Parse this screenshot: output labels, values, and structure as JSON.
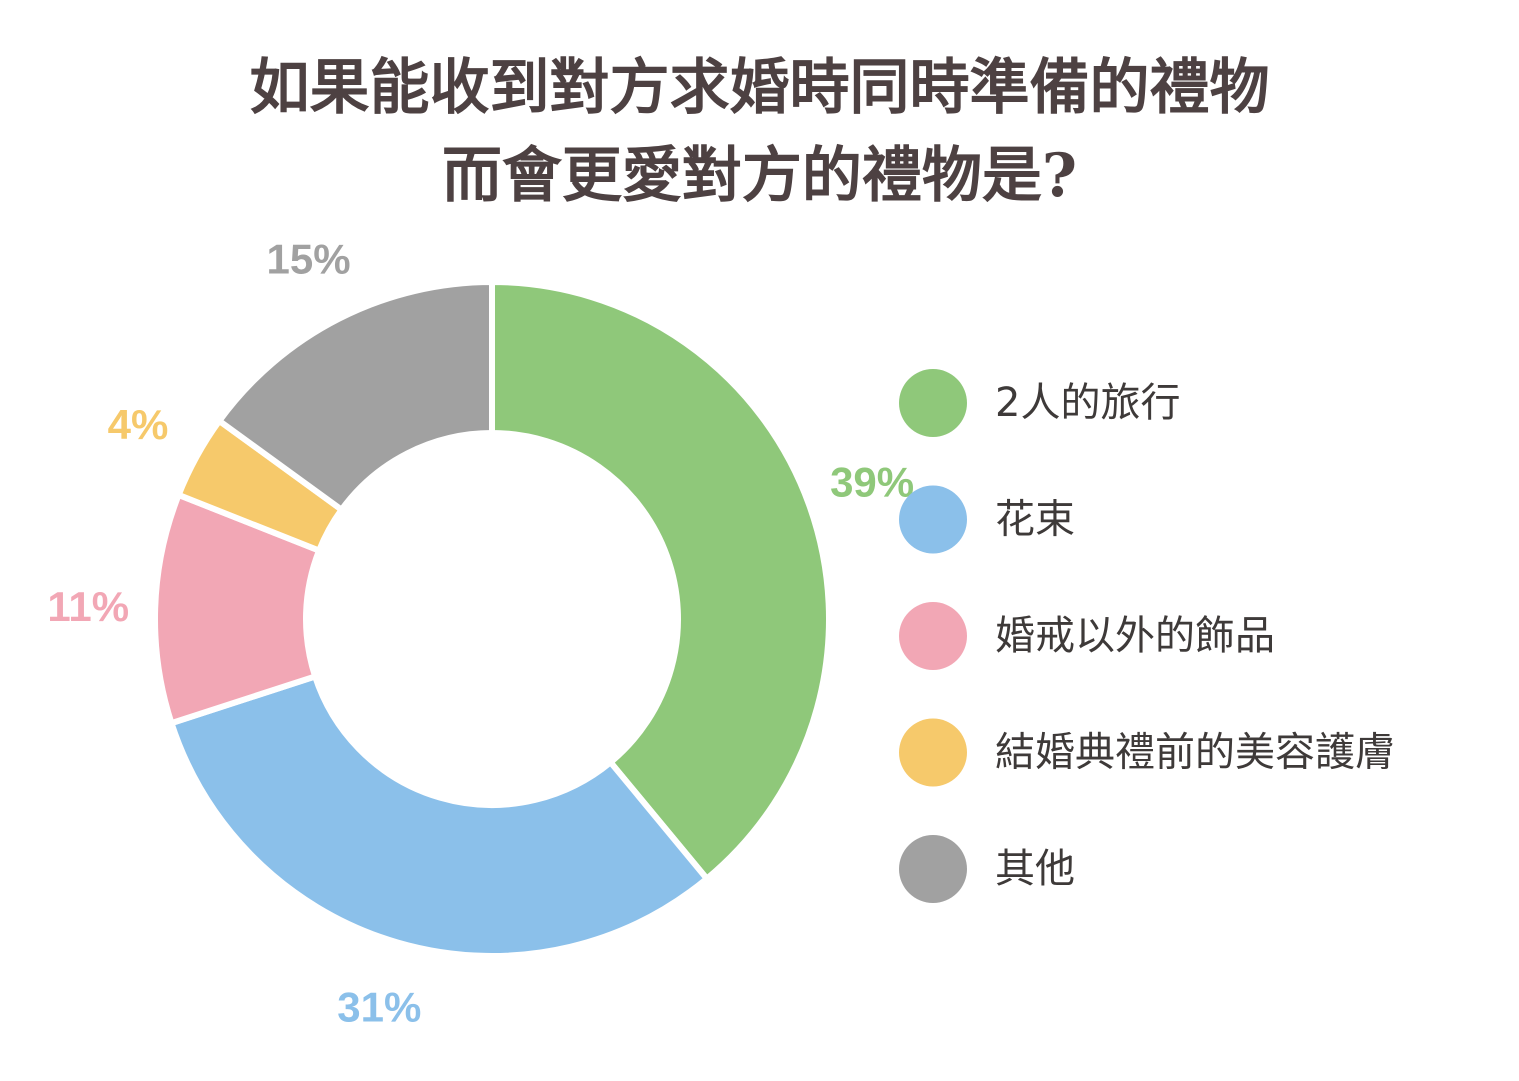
{
  "title_lines": [
    "如果能收到對方求婚時同時準備的禮物",
    "而會更愛對方的禮物是?"
  ],
  "chart_data": {
    "type": "pie",
    "variant": "donut",
    "title": "如果能收到對方求婚時同時準備的禮物 而會更愛對方的禮物是?",
    "categories": [
      "2人的旅行",
      "花束",
      "婚戒以外的飾品",
      "結婚典禮前的美容護膚",
      "其他"
    ],
    "values": [
      39,
      31,
      11,
      4,
      15
    ],
    "labels": [
      "39%",
      "31%",
      "11%",
      "4%",
      "15%"
    ],
    "colors": [
      "#8fc87a",
      "#8bc0ea",
      "#f2a7b5",
      "#f6c96b",
      "#a1a1a1"
    ],
    "legend": "right",
    "grid": false
  }
}
